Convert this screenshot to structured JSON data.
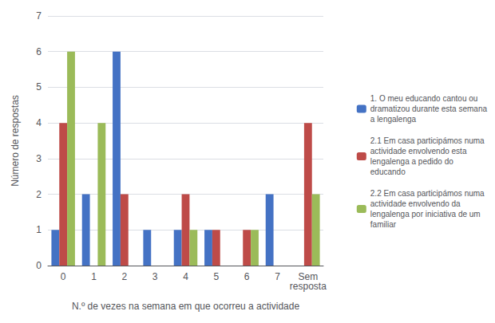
{
  "chart_data": {
    "type": "bar",
    "categories": [
      "0",
      "1",
      "2",
      "3",
      "4",
      "5",
      "6",
      "7",
      "Sem\nresposta"
    ],
    "series": [
      {
        "name": "1. O meu educando cantou ou\ndramatizou durante esta semana\na lengalenga",
        "color": "#4472C4",
        "values": [
          1,
          2,
          6,
          1,
          1,
          1,
          0,
          2,
          0
        ]
      },
      {
        "name": "2.1 Em casa participámos numa\nactividade envolvendo esta\nlengalenga a pedido do\neducando",
        "color": "#BE4B48",
        "values": [
          4,
          0,
          2,
          0,
          2,
          1,
          1,
          0,
          4
        ]
      },
      {
        "name": "2.2 Em casa participámos numa\nactividade envolvendo da\nlengalenga por iniciativa de um\nfamiliar",
        "color": "#9BBB59",
        "values": [
          6,
          4,
          0,
          0,
          1,
          0,
          1,
          0,
          2
        ]
      }
    ],
    "xlabel": "N.º de vezes na semana em que ocorreu a actividade",
    "ylabel": "Número de respostas",
    "ylim": [
      0,
      7
    ],
    "yticks": [
      0,
      1,
      2,
      3,
      4,
      5,
      6,
      7
    ],
    "grid": true,
    "legend": "right"
  }
}
